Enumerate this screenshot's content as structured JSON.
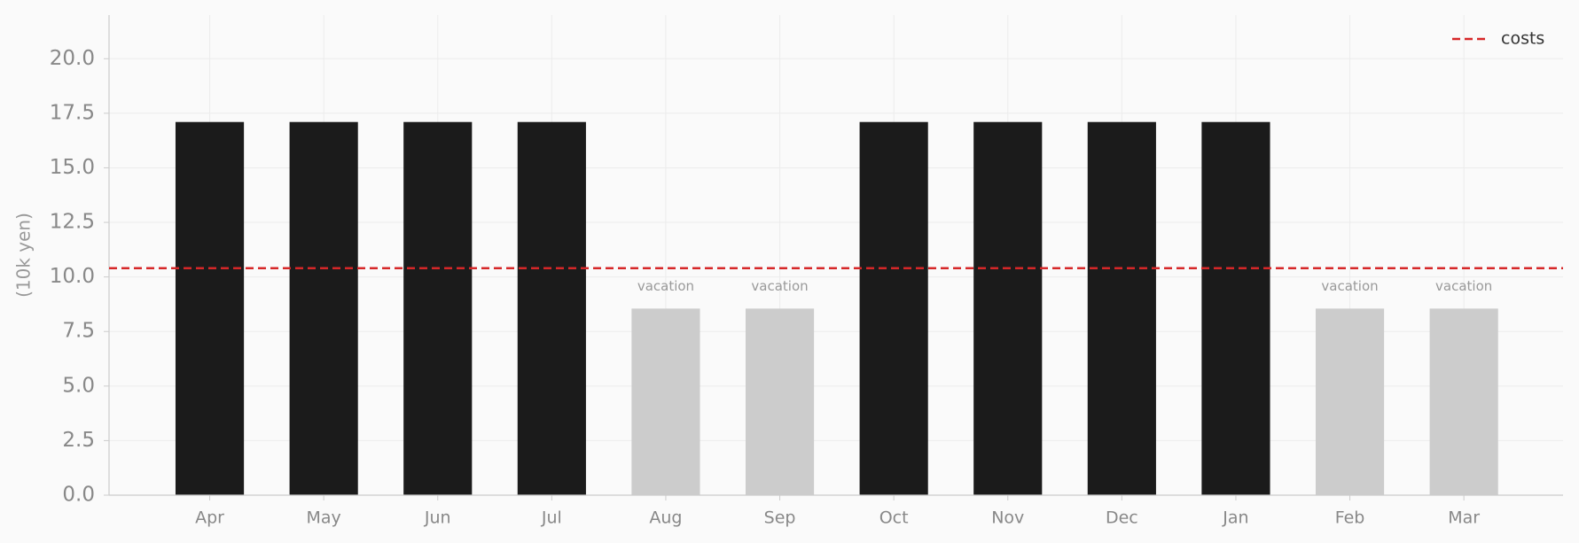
{
  "chart_data": {
    "type": "bar",
    "ylabel": "(10k yen)",
    "categories": [
      "Apr",
      "May",
      "Jun",
      "Jul",
      "Aug",
      "Sep",
      "Oct",
      "Nov",
      "Dec",
      "Jan",
      "Feb",
      "Mar"
    ],
    "values": [
      17.1,
      17.1,
      17.1,
      17.1,
      8.55,
      8.55,
      17.1,
      17.1,
      17.1,
      17.1,
      8.55,
      8.55
    ],
    "colors": [
      "#1b1b1b",
      "#1b1b1b",
      "#1b1b1b",
      "#1b1b1b",
      "#cccccc",
      "#cccccc",
      "#1b1b1b",
      "#1b1b1b",
      "#1b1b1b",
      "#1b1b1b",
      "#cccccc",
      "#cccccc"
    ],
    "bar_labels": [
      null,
      null,
      null,
      null,
      "vacation",
      "vacation",
      null,
      null,
      null,
      null,
      "vacation",
      "vacation"
    ],
    "reference_line": {
      "name": "costs",
      "value": 10.4,
      "color": "#d62728",
      "style": "dashed"
    },
    "ylim": [
      0,
      22
    ],
    "yticks": [
      {
        "value": 0,
        "label": "0.0"
      },
      2.5,
      {
        "value": 5,
        "label": "5.0"
      },
      7.5,
      {
        "value": 10,
        "label": "10.0"
      },
      12.5,
      {
        "value": 15,
        "label": "15.0"
      },
      17.5,
      {
        "value": 20,
        "label": "20.0"
      }
    ],
    "grid": true,
    "legend_position": "upper right"
  }
}
